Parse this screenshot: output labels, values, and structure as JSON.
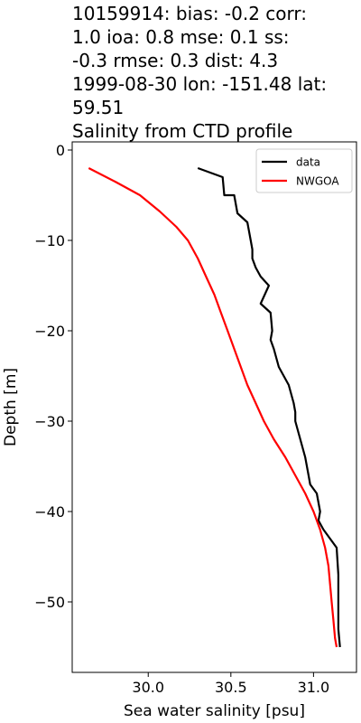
{
  "chart_data": {
    "type": "line",
    "title_lines": [
      "10159914: bias: -0.2  corr:",
      "1.0  ioa: 0.8  mse: 0.1  ss:",
      "-0.3  rmse: 0.3  dist: 4.3",
      "1999-08-30 lon: -151.48 lat:",
      "59.51",
      "Salinity from CTD profile"
    ],
    "xlabel": "Sea water salinity [psu]",
    "ylabel": "Depth [m]",
    "xlim": [
      29.54,
      31.26
    ],
    "ylim": [
      -57.8,
      0.9
    ],
    "xticks": [
      {
        "value": 30.0,
        "label": "30.0"
      },
      {
        "value": 30.5,
        "label": "30.5"
      },
      {
        "value": 31.0,
        "label": "31.0"
      }
    ],
    "yticks": [
      {
        "value": 0,
        "label": "0"
      },
      {
        "value": -10,
        "label": "−10"
      },
      {
        "value": -20,
        "label": "−20"
      },
      {
        "value": -30,
        "label": "−30"
      },
      {
        "value": -40,
        "label": "−40"
      },
      {
        "value": -50,
        "label": "−50"
      }
    ],
    "grid": false,
    "legend_position": "top-right",
    "series": [
      {
        "name": "data",
        "color": "#000000",
        "points": [
          [
            30.3,
            -2
          ],
          [
            30.45,
            -3
          ],
          [
            30.46,
            -5
          ],
          [
            30.52,
            -5
          ],
          [
            30.53,
            -6
          ],
          [
            30.54,
            -7
          ],
          [
            30.6,
            -8
          ],
          [
            30.62,
            -10
          ],
          [
            30.63,
            -11
          ],
          [
            30.63,
            -12
          ],
          [
            30.65,
            -13
          ],
          [
            30.68,
            -14
          ],
          [
            30.73,
            -15
          ],
          [
            30.68,
            -17
          ],
          [
            30.74,
            -18
          ],
          [
            30.75,
            -20
          ],
          [
            30.74,
            -21
          ],
          [
            30.76,
            -22
          ],
          [
            30.79,
            -24
          ],
          [
            30.82,
            -25
          ],
          [
            30.85,
            -26
          ],
          [
            30.88,
            -28
          ],
          [
            30.89,
            -29
          ],
          [
            30.89,
            -30
          ],
          [
            30.92,
            -32
          ],
          [
            30.95,
            -34
          ],
          [
            30.97,
            -36
          ],
          [
            30.98,
            -37
          ],
          [
            31.02,
            -38
          ],
          [
            31.04,
            -40
          ],
          [
            31.03,
            -41
          ],
          [
            31.06,
            -42
          ],
          [
            31.1,
            -43
          ],
          [
            31.14,
            -44
          ],
          [
            31.15,
            -47
          ],
          [
            31.15,
            -50
          ],
          [
            31.15,
            -53
          ],
          [
            31.16,
            -55
          ]
        ]
      },
      {
        "name": "NWGOA",
        "color": "#ff0000",
        "points": [
          [
            29.64,
            -2
          ],
          [
            29.8,
            -3.5
          ],
          [
            29.95,
            -5
          ],
          [
            30.07,
            -6.8
          ],
          [
            30.17,
            -8.5
          ],
          [
            30.24,
            -10
          ],
          [
            30.3,
            -12
          ],
          [
            30.35,
            -14
          ],
          [
            30.4,
            -16
          ],
          [
            30.44,
            -18
          ],
          [
            30.48,
            -20
          ],
          [
            30.52,
            -22
          ],
          [
            30.56,
            -24
          ],
          [
            30.6,
            -26
          ],
          [
            30.65,
            -28
          ],
          [
            30.7,
            -30
          ],
          [
            30.76,
            -32
          ],
          [
            30.83,
            -34
          ],
          [
            30.89,
            -36
          ],
          [
            30.95,
            -38
          ],
          [
            31.0,
            -40
          ],
          [
            31.04,
            -42
          ],
          [
            31.07,
            -44
          ],
          [
            31.09,
            -46
          ],
          [
            31.1,
            -48
          ],
          [
            31.11,
            -50
          ],
          [
            31.12,
            -52
          ],
          [
            31.13,
            -54
          ],
          [
            31.14,
            -55
          ]
        ]
      }
    ]
  }
}
